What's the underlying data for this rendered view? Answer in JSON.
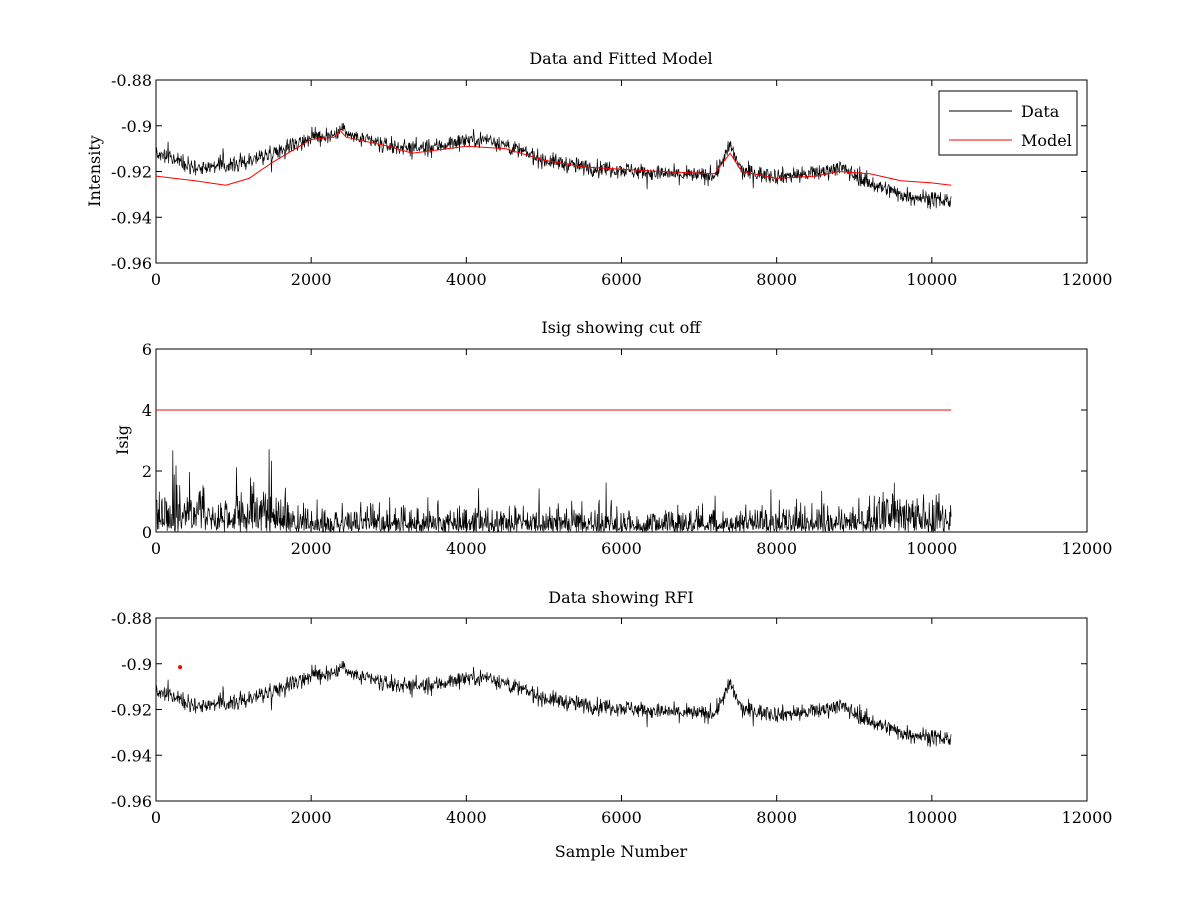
{
  "chart_data": [
    {
      "type": "line",
      "title": "Data and Fitted Model",
      "xlabel": "",
      "ylabel": "Intensity",
      "xlim": [
        0,
        12000
      ],
      "ylim": [
        -0.96,
        -0.88
      ],
      "xticks": [
        "0",
        "2000",
        "4000",
        "6000",
        "8000",
        "10000",
        "12000"
      ],
      "yticks": [
        "-0.96",
        "-0.94",
        "-0.92",
        "-0.9",
        "-0.88"
      ],
      "legend": {
        "placement": "top-right",
        "entries": [
          "Data",
          "Model"
        ]
      },
      "series": [
        {
          "name": "Data",
          "color": "#000000",
          "style": "noisy",
          "noise_amplitude": 0.007,
          "points": [
            [
              0,
              -0.912
            ],
            [
              500,
              -0.918
            ],
            [
              1000,
              -0.917
            ],
            [
              1500,
              -0.912
            ],
            [
              2000,
              -0.905
            ],
            [
              2350,
              -0.904
            ],
            [
              2400,
              -0.898
            ],
            [
              2450,
              -0.904
            ],
            [
              3000,
              -0.909
            ],
            [
              3500,
              -0.91
            ],
            [
              4000,
              -0.906
            ],
            [
              4300,
              -0.906
            ],
            [
              5000,
              -0.915
            ],
            [
              5500,
              -0.918
            ],
            [
              6000,
              -0.919
            ],
            [
              6500,
              -0.921
            ],
            [
              7200,
              -0.922
            ],
            [
              7400,
              -0.909
            ],
            [
              7550,
              -0.92
            ],
            [
              8000,
              -0.922
            ],
            [
              8500,
              -0.921
            ],
            [
              8800,
              -0.918
            ],
            [
              9200,
              -0.925
            ],
            [
              9600,
              -0.93
            ],
            [
              10000,
              -0.932
            ],
            [
              10250,
              -0.933
            ]
          ]
        },
        {
          "name": "Model",
          "color": "#ff0000",
          "style": "line",
          "points": [
            [
              0,
              -0.922
            ],
            [
              500,
              -0.924
            ],
            [
              900,
              -0.926
            ],
            [
              1200,
              -0.923
            ],
            [
              1500,
              -0.916
            ],
            [
              1800,
              -0.91
            ],
            [
              2000,
              -0.906
            ],
            [
              2300,
              -0.905
            ],
            [
              2370,
              -0.902
            ],
            [
              2450,
              -0.905
            ],
            [
              3000,
              -0.909
            ],
            [
              3300,
              -0.912
            ],
            [
              4000,
              -0.909
            ],
            [
              4500,
              -0.91
            ],
            [
              5000,
              -0.915
            ],
            [
              5500,
              -0.918
            ],
            [
              6000,
              -0.919
            ],
            [
              6500,
              -0.92
            ],
            [
              7200,
              -0.921
            ],
            [
              7400,
              -0.912
            ],
            [
              7550,
              -0.92
            ],
            [
              8000,
              -0.923
            ],
            [
              8500,
              -0.922
            ],
            [
              8800,
              -0.92
            ],
            [
              9200,
              -0.921
            ],
            [
              9600,
              -0.924
            ],
            [
              10000,
              -0.925
            ],
            [
              10250,
              -0.926
            ]
          ]
        }
      ]
    },
    {
      "type": "line",
      "title": "Isig showing cut off",
      "xlabel": "",
      "ylabel": "Isig",
      "xlim": [
        0,
        12000
      ],
      "ylim": [
        0,
        6
      ],
      "xticks": [
        "0",
        "2000",
        "4000",
        "6000",
        "8000",
        "10000",
        "12000"
      ],
      "yticks": [
        "0",
        "2",
        "4",
        "6"
      ],
      "series": [
        {
          "name": "Isig",
          "color": "#000000",
          "style": "abs-noise",
          "envelope": [
            [
              0,
              1.6
            ],
            [
              1500,
              1.3
            ],
            [
              2000,
              0.8
            ],
            [
              4000,
              0.85
            ],
            [
              6000,
              0.75
            ],
            [
              8000,
              0.75
            ],
            [
              9000,
              0.8
            ],
            [
              9500,
              1.3
            ],
            [
              10250,
              1.4
            ]
          ]
        },
        {
          "name": "Cut off",
          "color": "#ff0000",
          "style": "line",
          "points": [
            [
              0,
              4
            ],
            [
              10250,
              4
            ]
          ]
        }
      ]
    },
    {
      "type": "line",
      "title": "Data showing RFI",
      "xlabel": "Sample Number",
      "ylabel": "",
      "xlim": [
        0,
        12000
      ],
      "ylim": [
        -0.96,
        -0.88
      ],
      "xticks": [
        "0",
        "2000",
        "4000",
        "6000",
        "8000",
        "10000",
        "12000"
      ],
      "yticks": [
        "-0.96",
        "-0.94",
        "-0.92",
        "-0.9",
        "-0.88"
      ],
      "series": [
        {
          "name": "Data",
          "color": "#000000",
          "style": "noisy",
          "noise_amplitude": 0.007,
          "points": [
            [
              0,
              -0.912
            ],
            [
              500,
              -0.918
            ],
            [
              1000,
              -0.917
            ],
            [
              1500,
              -0.912
            ],
            [
              2000,
              -0.905
            ],
            [
              2350,
              -0.904
            ],
            [
              2400,
              -0.898
            ],
            [
              2450,
              -0.904
            ],
            [
              3000,
              -0.909
            ],
            [
              3500,
              -0.91
            ],
            [
              4000,
              -0.906
            ],
            [
              4300,
              -0.906
            ],
            [
              5000,
              -0.915
            ],
            [
              5500,
              -0.918
            ],
            [
              6000,
              -0.919
            ],
            [
              6500,
              -0.921
            ],
            [
              7200,
              -0.922
            ],
            [
              7400,
              -0.909
            ],
            [
              7550,
              -0.92
            ],
            [
              8000,
              -0.922
            ],
            [
              8500,
              -0.921
            ],
            [
              8800,
              -0.918
            ],
            [
              9200,
              -0.925
            ],
            [
              9600,
              -0.93
            ],
            [
              10000,
              -0.932
            ],
            [
              10250,
              -0.933
            ]
          ]
        },
        {
          "name": "RFI",
          "color": "#ff0000",
          "style": "marker",
          "points": [
            [
              310,
              -0.9015
            ]
          ]
        }
      ]
    }
  ]
}
